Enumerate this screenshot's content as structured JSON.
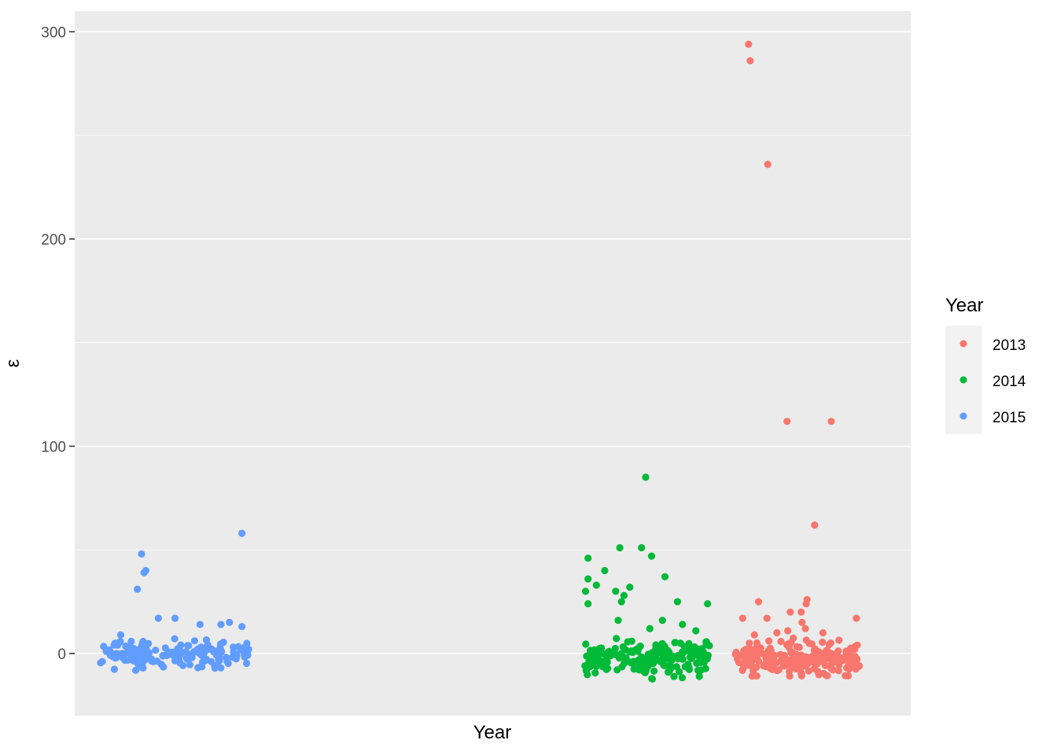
{
  "chart_data": {
    "type": "scatter",
    "title": "",
    "xlabel": "Year",
    "ylabel": "ε",
    "ylim": [
      -30,
      310
    ],
    "yticks": [
      0,
      100,
      200,
      300
    ],
    "ytick_labels": [
      "0",
      "100",
      "200",
      "300"
    ],
    "grid": true,
    "legend": {
      "title": "Year",
      "position": "right",
      "entries": [
        "2013",
        "2014",
        "2015"
      ]
    },
    "colors": {
      "2013": "#F8766D",
      "2014": "#00BA38",
      "2015": "#619CFF",
      "panel": "#EBEBEB",
      "grid": "#FFFFFF",
      "tick": "#333333"
    },
    "series": [
      {
        "name": "2015",
        "x_range": [
          0.03,
          0.21
        ],
        "outliers": [
          {
            "x": 0.2,
            "y": 58
          },
          {
            "x": 0.08,
            "y": 48
          },
          {
            "x": 0.085,
            "y": 40
          },
          {
            "x": 0.083,
            "y": 39
          },
          {
            "x": 0.075,
            "y": 31
          },
          {
            "x": 0.12,
            "y": 17
          },
          {
            "x": 0.1,
            "y": 17
          },
          {
            "x": 0.185,
            "y": 15
          },
          {
            "x": 0.175,
            "y": 14
          },
          {
            "x": 0.15,
            "y": 14
          },
          {
            "x": 0.2,
            "y": 13
          },
          {
            "x": 0.055,
            "y": 9
          }
        ],
        "cluster": {
          "count": 170,
          "y_min": -10,
          "y_max": 9
        }
      },
      {
        "name": "2014",
        "x_range": [
          0.61,
          0.76
        ],
        "outliers": [
          {
            "x": 0.683,
            "y": 85
          },
          {
            "x": 0.652,
            "y": 51
          },
          {
            "x": 0.678,
            "y": 51
          },
          {
            "x": 0.69,
            "y": 47
          },
          {
            "x": 0.614,
            "y": 46
          },
          {
            "x": 0.634,
            "y": 40
          },
          {
            "x": 0.614,
            "y": 36
          },
          {
            "x": 0.706,
            "y": 37
          },
          {
            "x": 0.624,
            "y": 33
          },
          {
            "x": 0.664,
            "y": 32
          },
          {
            "x": 0.647,
            "y": 30
          },
          {
            "x": 0.611,
            "y": 30
          },
          {
            "x": 0.657,
            "y": 28
          },
          {
            "x": 0.654,
            "y": 25
          },
          {
            "x": 0.614,
            "y": 24
          },
          {
            "x": 0.721,
            "y": 25
          },
          {
            "x": 0.757,
            "y": 24
          },
          {
            "x": 0.703,
            "y": 16
          },
          {
            "x": 0.65,
            "y": 16
          },
          {
            "x": 0.727,
            "y": 14
          },
          {
            "x": 0.743,
            "y": 11
          },
          {
            "x": 0.688,
            "y": 12
          }
        ],
        "cluster": {
          "count": 200,
          "y_min": -14,
          "y_max": 10
        }
      },
      {
        "name": "2013",
        "x_range": [
          0.79,
          0.94
        ],
        "outliers": [
          {
            "x": 0.806,
            "y": 294
          },
          {
            "x": 0.808,
            "y": 286
          },
          {
            "x": 0.829,
            "y": 236
          },
          {
            "x": 0.852,
            "y": 112
          },
          {
            "x": 0.905,
            "y": 112
          },
          {
            "x": 0.885,
            "y": 62
          },
          {
            "x": 0.876,
            "y": 26
          },
          {
            "x": 0.875,
            "y": 24
          },
          {
            "x": 0.818,
            "y": 25
          },
          {
            "x": 0.869,
            "y": 20
          },
          {
            "x": 0.856,
            "y": 20
          },
          {
            "x": 0.799,
            "y": 17
          },
          {
            "x": 0.935,
            "y": 17
          },
          {
            "x": 0.828,
            "y": 17
          },
          {
            "x": 0.87,
            "y": 15
          },
          {
            "x": 0.874,
            "y": 12
          },
          {
            "x": 0.853,
            "y": 11
          },
          {
            "x": 0.84,
            "y": 10
          },
          {
            "x": 0.813,
            "y": 9
          },
          {
            "x": 0.895,
            "y": 10
          }
        ],
        "cluster": {
          "count": 220,
          "y_min": -14,
          "y_max": 9
        }
      }
    ]
  }
}
